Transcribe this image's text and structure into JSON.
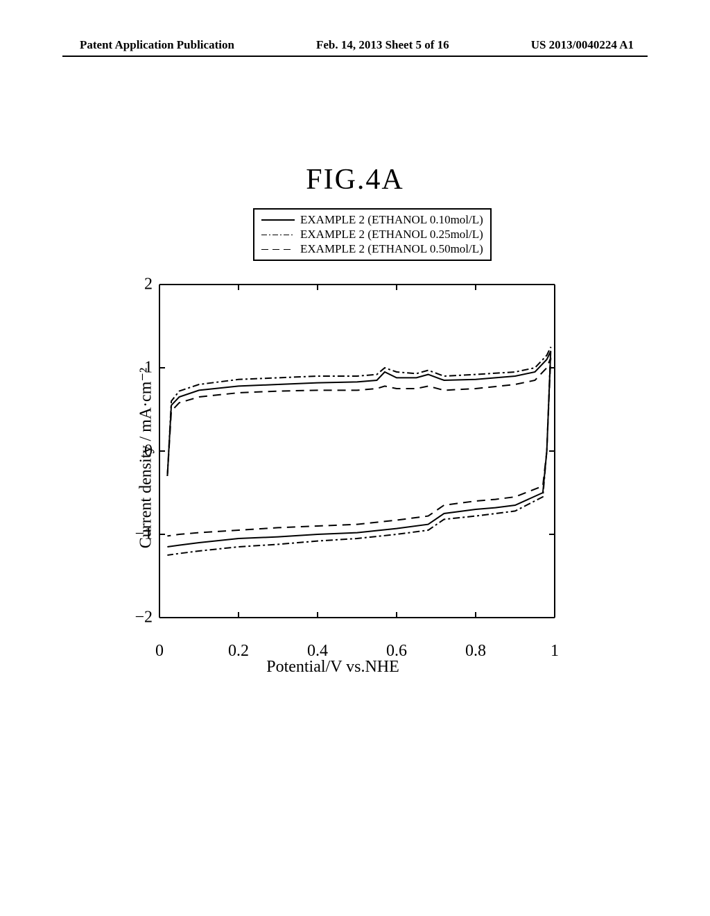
{
  "header": {
    "left": "Patent Application Publication",
    "center": "Feb. 14, 2013  Sheet 5 of 16",
    "right": "US 2013/0040224 A1"
  },
  "figure": {
    "title": "FIG.4A",
    "type": "line",
    "xlabel": "Potential/V vs.NHE",
    "ylabel": "Current density / mA·cm⁻²",
    "xlim": [
      0,
      1
    ],
    "ylim": [
      -2,
      2
    ],
    "xticks": [
      0,
      0.2,
      0.4,
      0.6,
      0.8,
      1
    ],
    "yticks": [
      -2,
      -1,
      0,
      1,
      2
    ],
    "background_color": "#ffffff",
    "axis_color": "#000000",
    "line_width": 2,
    "legend": {
      "items": [
        {
          "label": "EXAMPLE 2 (ETHANOL 0.10mol/L)",
          "style": "solid",
          "color": "#000000"
        },
        {
          "label": "EXAMPLE 2 (ETHANOL 0.25mol/L)",
          "style": "dash-dot",
          "color": "#000000"
        },
        {
          "label": "EXAMPLE 2 (ETHANOL 0.50mol/L)",
          "style": "dash",
          "color": "#000000"
        }
      ]
    },
    "series": [
      {
        "name": "ethanol-0.10",
        "style": "solid",
        "color": "#000000",
        "upper": [
          [
            0.02,
            -0.3
          ],
          [
            0.03,
            0.55
          ],
          [
            0.05,
            0.65
          ],
          [
            0.1,
            0.73
          ],
          [
            0.2,
            0.78
          ],
          [
            0.3,
            0.8
          ],
          [
            0.4,
            0.82
          ],
          [
            0.5,
            0.83
          ],
          [
            0.55,
            0.85
          ],
          [
            0.57,
            0.95
          ],
          [
            0.6,
            0.88
          ],
          [
            0.65,
            0.88
          ],
          [
            0.68,
            0.92
          ],
          [
            0.72,
            0.85
          ],
          [
            0.8,
            0.86
          ],
          [
            0.9,
            0.9
          ],
          [
            0.95,
            0.95
          ],
          [
            0.98,
            1.1
          ],
          [
            0.99,
            1.2
          ]
        ],
        "lower": [
          [
            0.99,
            1.2
          ],
          [
            0.98,
            0.0
          ],
          [
            0.97,
            -0.5
          ],
          [
            0.9,
            -0.65
          ],
          [
            0.85,
            -0.68
          ],
          [
            0.8,
            -0.7
          ],
          [
            0.72,
            -0.75
          ],
          [
            0.68,
            -0.88
          ],
          [
            0.6,
            -0.93
          ],
          [
            0.5,
            -0.98
          ],
          [
            0.4,
            -1.0
          ],
          [
            0.3,
            -1.03
          ],
          [
            0.2,
            -1.05
          ],
          [
            0.1,
            -1.1
          ],
          [
            0.05,
            -1.13
          ],
          [
            0.02,
            -1.15
          ]
        ]
      },
      {
        "name": "ethanol-0.25",
        "style": "dash-dot",
        "color": "#000000",
        "upper": [
          [
            0.02,
            -0.3
          ],
          [
            0.03,
            0.6
          ],
          [
            0.05,
            0.72
          ],
          [
            0.1,
            0.8
          ],
          [
            0.2,
            0.86
          ],
          [
            0.3,
            0.88
          ],
          [
            0.4,
            0.9
          ],
          [
            0.5,
            0.9
          ],
          [
            0.55,
            0.92
          ],
          [
            0.57,
            1.0
          ],
          [
            0.6,
            0.95
          ],
          [
            0.65,
            0.93
          ],
          [
            0.68,
            0.97
          ],
          [
            0.72,
            0.9
          ],
          [
            0.8,
            0.92
          ],
          [
            0.9,
            0.95
          ],
          [
            0.95,
            1.0
          ],
          [
            0.98,
            1.15
          ],
          [
            0.99,
            1.25
          ]
        ],
        "lower": [
          [
            0.99,
            1.25
          ],
          [
            0.98,
            0.0
          ],
          [
            0.97,
            -0.55
          ],
          [
            0.9,
            -0.72
          ],
          [
            0.85,
            -0.75
          ],
          [
            0.8,
            -0.78
          ],
          [
            0.72,
            -0.82
          ],
          [
            0.68,
            -0.95
          ],
          [
            0.6,
            -1.0
          ],
          [
            0.5,
            -1.05
          ],
          [
            0.4,
            -1.08
          ],
          [
            0.3,
            -1.12
          ],
          [
            0.2,
            -1.15
          ],
          [
            0.1,
            -1.2
          ],
          [
            0.05,
            -1.23
          ],
          [
            0.02,
            -1.25
          ]
        ]
      },
      {
        "name": "ethanol-0.50",
        "style": "dash",
        "color": "#000000",
        "upper": [
          [
            0.02,
            -0.3
          ],
          [
            0.03,
            0.48
          ],
          [
            0.05,
            0.58
          ],
          [
            0.1,
            0.65
          ],
          [
            0.2,
            0.7
          ],
          [
            0.3,
            0.72
          ],
          [
            0.4,
            0.73
          ],
          [
            0.5,
            0.73
          ],
          [
            0.55,
            0.75
          ],
          [
            0.57,
            0.78
          ],
          [
            0.6,
            0.75
          ],
          [
            0.65,
            0.75
          ],
          [
            0.68,
            0.78
          ],
          [
            0.72,
            0.73
          ],
          [
            0.8,
            0.75
          ],
          [
            0.9,
            0.8
          ],
          [
            0.95,
            0.85
          ],
          [
            0.98,
            1.0
          ],
          [
            0.99,
            1.12
          ]
        ],
        "lower": [
          [
            0.99,
            1.12
          ],
          [
            0.98,
            0.0
          ],
          [
            0.97,
            -0.42
          ],
          [
            0.9,
            -0.55
          ],
          [
            0.85,
            -0.58
          ],
          [
            0.8,
            -0.6
          ],
          [
            0.72,
            -0.65
          ],
          [
            0.68,
            -0.78
          ],
          [
            0.6,
            -0.83
          ],
          [
            0.5,
            -0.88
          ],
          [
            0.4,
            -0.9
          ],
          [
            0.3,
            -0.92
          ],
          [
            0.2,
            -0.95
          ],
          [
            0.1,
            -0.98
          ],
          [
            0.05,
            -1.0
          ],
          [
            0.02,
            -1.02
          ]
        ]
      }
    ]
  }
}
